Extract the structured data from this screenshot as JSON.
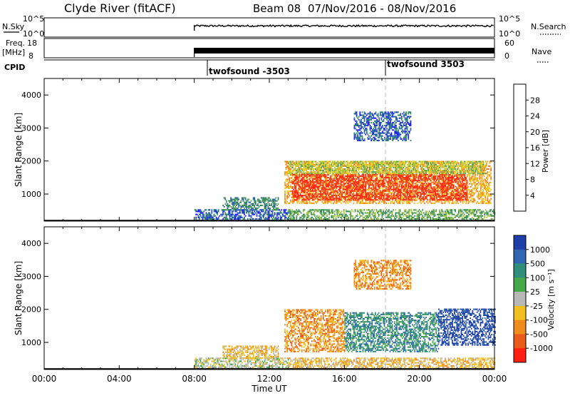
{
  "header": {
    "station": "Clyde River (fitACF)",
    "beam": "Beam 08",
    "date_range": "07/Nov/2016 - 08/Nov/2016"
  },
  "time_axis": {
    "ticks": [
      "00:00",
      "04:00",
      "08:00",
      "12:00",
      "16:00",
      "20:00",
      "00:00"
    ],
    "xlabel": "Time UT"
  },
  "top_panels": {
    "nsky_label": "N.Sky",
    "nsky_ticks": [
      "10^5",
      "10^0"
    ],
    "nsearch_label": "N.Search",
    "freq_label": "Freq.",
    "freq_unit": "[MHz]",
    "freq_ticks": [
      "18",
      "8"
    ],
    "nave_ticks": [
      "60",
      "0"
    ],
    "nave_label": "Nave",
    "cpid_label": "CPID",
    "cpid_segments": [
      {
        "name": "twofsound -3503",
        "start_hour": 8.0
      },
      {
        "name": "twofsound 3503",
        "start_hour": 18.0
      }
    ]
  },
  "chart_data": [
    {
      "type": "heatmap",
      "panel": "power",
      "ylabel": "Slant Range [km]",
      "y_ticks": [
        "1000",
        "2000",
        "3000",
        "4000"
      ],
      "ylim": [
        180,
        4500
      ],
      "xlim": [
        0,
        24
      ],
      "colorbar_label": "Power [dB]",
      "colorbar_ticks": [
        "4",
        "8",
        "12",
        "16",
        "20",
        "24",
        "28"
      ],
      "colors": [
        "#1a1aff",
        "#2b5fb4",
        "#2e8b57",
        "#5aa05a",
        "#a8c83c",
        "#e8d21c",
        "#f5a623",
        "#f07820",
        "#ea4a1a",
        "#ff2a14"
      ],
      "regions": [
        {
          "t0": 8.0,
          "t1": 13.0,
          "r0": 180,
          "r1": 500,
          "level": 1
        },
        {
          "t0": 9.5,
          "t1": 12.5,
          "r0": 500,
          "r1": 900,
          "level": 2
        },
        {
          "t0": 12.8,
          "t1": 23.8,
          "r0": 700,
          "r1": 2000,
          "level": 6
        },
        {
          "t0": 13.2,
          "t1": 22.5,
          "r0": 800,
          "r1": 1600,
          "level": 9
        },
        {
          "t0": 13.0,
          "t1": 23.5,
          "r0": 1600,
          "r1": 2000,
          "level": 4
        },
        {
          "t0": 13.0,
          "t1": 24.0,
          "r0": 180,
          "r1": 500,
          "level": 3
        },
        {
          "t0": 16.5,
          "t1": 19.5,
          "r0": 2600,
          "r1": 3500,
          "level": 1
        }
      ]
    },
    {
      "type": "heatmap",
      "panel": "velocity",
      "ylabel": "Slant Range [km]",
      "y_ticks": [
        "1000",
        "2000",
        "3000",
        "4000"
      ],
      "ylim": [
        180,
        4500
      ],
      "xlim": [
        0,
        24
      ],
      "colorbar_label": "Velocity [m s⁻¹]",
      "colorbar_ticks": [
        "1000",
        "500",
        "100",
        "25",
        "-25",
        "-100",
        "-500",
        "-1000"
      ],
      "colors": [
        "#1f3fa8",
        "#3067b0",
        "#2f8f7a",
        "#46a84a",
        "#b8b8b8",
        "#f0c020",
        "#f08c1c",
        "#ea5a1a",
        "#ff2012"
      ],
      "regions": [
        {
          "t0": 8.0,
          "t1": 13.0,
          "r0": 180,
          "r1": 500,
          "level": 4
        },
        {
          "t0": 9.5,
          "t1": 12.5,
          "r0": 500,
          "r1": 900,
          "level": 5
        },
        {
          "t0": 12.8,
          "t1": 16.0,
          "r0": 700,
          "r1": 2000,
          "level": 6
        },
        {
          "t0": 16.0,
          "t1": 21.0,
          "r0": 700,
          "r1": 1900,
          "level": 2
        },
        {
          "t0": 21.0,
          "t1": 24.0,
          "r0": 900,
          "r1": 2000,
          "level": 0
        },
        {
          "t0": 13.0,
          "t1": 24.0,
          "r0": 180,
          "r1": 500,
          "level": 5
        },
        {
          "t0": 16.5,
          "t1": 19.5,
          "r0": 2600,
          "r1": 3500,
          "level": 6
        }
      ]
    }
  ]
}
